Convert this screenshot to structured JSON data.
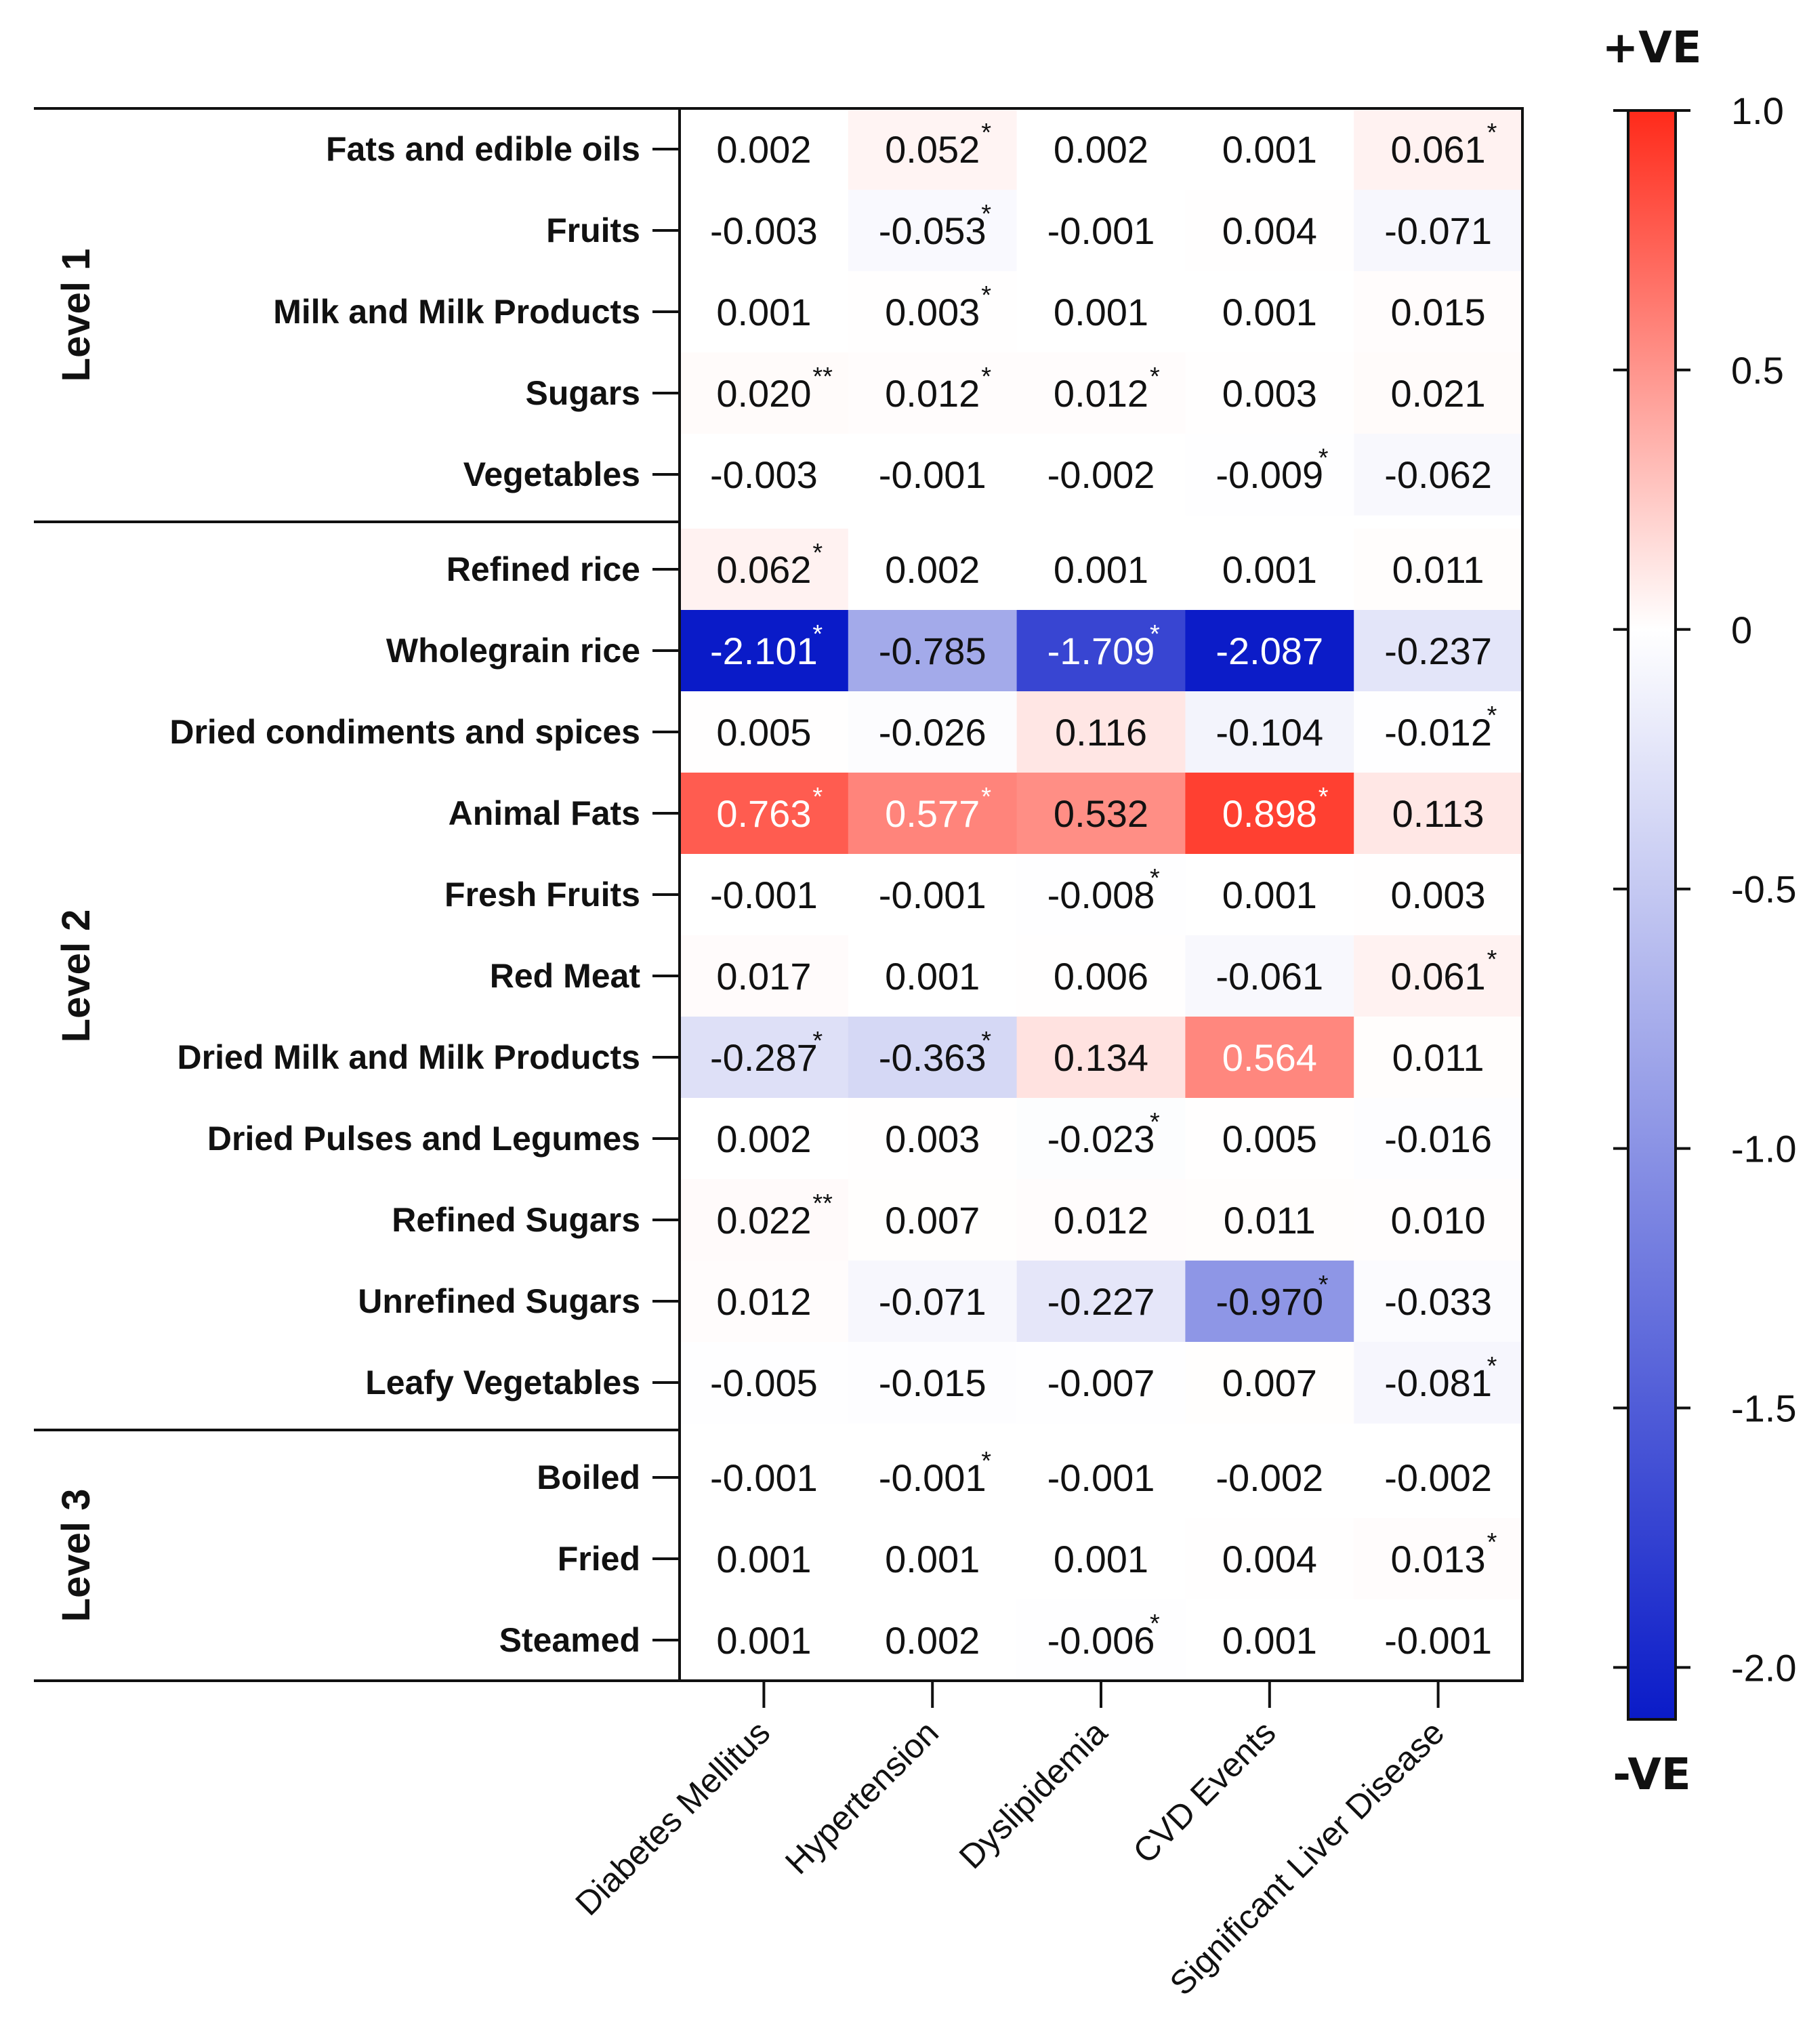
{
  "chart_data": {
    "type": "heatmap",
    "columns": [
      "Diabetes Mellitus",
      "Hypertension",
      "Dyslipidemia",
      "CVD Events",
      "Significant Liver Disease"
    ],
    "groups": [
      {
        "label": "Level  1",
        "rows": [
          {
            "label": "Fats and edible oils",
            "values": [
              0.002,
              0.052,
              0.002,
              0.001,
              0.061
            ],
            "text": [
              "0.002",
              "0.052",
              "0.002",
              "0.001",
              "0.061"
            ],
            "stars": [
              "",
              "*",
              "",
              "",
              "*"
            ]
          },
          {
            "label": "Fruits",
            "values": [
              -0.003,
              -0.053,
              -0.001,
              0.004,
              -0.071
            ],
            "text": [
              "-0.003",
              "-0.053",
              "-0.001",
              "0.004",
              "-0.071"
            ],
            "stars": [
              "",
              "*",
              "",
              "",
              ""
            ]
          },
          {
            "label": "Milk and Milk Products",
            "values": [
              0.001,
              0.003,
              0.001,
              0.001,
              0.015
            ],
            "text": [
              "0.001",
              "0.003",
              "0.001",
              "0.001",
              "0.015"
            ],
            "stars": [
              "",
              "*",
              "",
              "",
              ""
            ]
          },
          {
            "label": "Sugars",
            "values": [
              0.02,
              0.012,
              0.012,
              0.003,
              0.021
            ],
            "text": [
              "0.020",
              "0.012",
              "0.012",
              "0.003",
              "0.021"
            ],
            "stars": [
              "**",
              "*",
              "*",
              "",
              ""
            ]
          },
          {
            "label": "Vegetables",
            "values": [
              -0.003,
              -0.001,
              -0.002,
              -0.009,
              -0.062
            ],
            "text": [
              "-0.003",
              "-0.001",
              "-0.002",
              "-0.009",
              "-0.062"
            ],
            "stars": [
              "",
              "",
              "",
              "*",
              ""
            ]
          }
        ]
      },
      {
        "label": "Level  2",
        "rows": [
          {
            "label": "Refined rice",
            "values": [
              0.062,
              0.002,
              0.001,
              0.001,
              0.011
            ],
            "text": [
              "0.062",
              "0.002",
              "0.001",
              "0.001",
              "0.011"
            ],
            "stars": [
              "*",
              "",
              "",
              "",
              ""
            ]
          },
          {
            "label": "Wholegrain rice",
            "values": [
              -2.101,
              -0.785,
              -1.709,
              -2.087,
              -0.237
            ],
            "text": [
              "-2.101",
              "-0.785",
              "-1.709",
              "-2.087",
              "-0.237"
            ],
            "stars": [
              "*",
              "",
              "*",
              "",
              ""
            ]
          },
          {
            "label": "Dried condiments and spices",
            "values": [
              0.005,
              -0.026,
              0.116,
              -0.104,
              -0.012
            ],
            "text": [
              "0.005",
              "-0.026",
              "0.116",
              "-0.104",
              "-0.012"
            ],
            "stars": [
              "",
              "",
              "",
              "",
              "*"
            ]
          },
          {
            "label": "Animal Fats",
            "values": [
              0.763,
              0.577,
              0.532,
              0.898,
              0.113
            ],
            "text": [
              "0.763",
              "0.577",
              "0.532",
              "0.898",
              "0.113"
            ],
            "stars": [
              "*",
              "*",
              "",
              "*",
              ""
            ]
          },
          {
            "label": "Fresh Fruits",
            "values": [
              -0.001,
              -0.001,
              -0.008,
              0.001,
              0.003
            ],
            "text": [
              "-0.001",
              "-0.001",
              "-0.008",
              "0.001",
              "0.003"
            ],
            "stars": [
              "",
              "",
              "*",
              "",
              ""
            ]
          },
          {
            "label": "Red Meat",
            "values": [
              0.017,
              0.001,
              0.006,
              -0.061,
              0.061
            ],
            "text": [
              "0.017",
              "0.001",
              "0.006",
              "-0.061",
              "0.061"
            ],
            "stars": [
              "",
              "",
              "",
              "",
              "*"
            ]
          },
          {
            "label": "Dried Milk and Milk Products",
            "values": [
              -0.287,
              -0.363,
              0.134,
              0.564,
              0.011
            ],
            "text": [
              "-0.287",
              "-0.363",
              "0.134",
              "0.564",
              "0.011"
            ],
            "stars": [
              "*",
              "*",
              "",
              "",
              ""
            ]
          },
          {
            "label": "Dried Pulses and Legumes",
            "values": [
              0.002,
              0.003,
              -0.023,
              0.005,
              -0.016
            ],
            "text": [
              "0.002",
              "0.003",
              "-0.023",
              "0.005",
              "-0.016"
            ],
            "stars": [
              "",
              "",
              "*",
              "",
              ""
            ]
          },
          {
            "label": "Refined Sugars",
            "values": [
              0.022,
              0.007,
              0.012,
              0.011,
              0.01
            ],
            "text": [
              "0.022",
              "0.007",
              "0.012",
              "0.011",
              "0.010"
            ],
            "stars": [
              "**",
              "",
              "",
              "",
              ""
            ]
          },
          {
            "label": "Unrefined Sugars",
            "values": [
              0.012,
              -0.071,
              -0.227,
              -0.97,
              -0.033
            ],
            "text": [
              "0.012",
              "-0.071",
              "-0.227",
              "-0.970",
              "-0.033"
            ],
            "stars": [
              "",
              "",
              "",
              "*",
              ""
            ]
          },
          {
            "label": "Leafy Vegetables",
            "values": [
              -0.005,
              -0.015,
              -0.007,
              0.007,
              -0.081
            ],
            "text": [
              "-0.005",
              "-0.015",
              "-0.007",
              "0.007",
              "-0.081"
            ],
            "stars": [
              "",
              "",
              "",
              "",
              "*"
            ]
          }
        ]
      },
      {
        "label": "Level 3",
        "rows": [
          {
            "label": "Boiled",
            "values": [
              -0.001,
              -0.001,
              -0.001,
              -0.002,
              -0.002
            ],
            "text": [
              "-0.001",
              "-0.001",
              "-0.001",
              "-0.002",
              "-0.002"
            ],
            "stars": [
              "",
              "*",
              "",
              "",
              ""
            ]
          },
          {
            "label": "Fried",
            "values": [
              0.001,
              0.001,
              0.001,
              0.004,
              0.013
            ],
            "text": [
              "0.001",
              "0.001",
              "0.001",
              "0.004",
              "0.013"
            ],
            "stars": [
              "",
              "",
              "",
              "",
              "*"
            ]
          },
          {
            "label": "Steamed",
            "values": [
              0.001,
              0.002,
              -0.006,
              0.001,
              -0.001
            ],
            "text": [
              "0.001",
              "0.002",
              "-0.006",
              "0.001",
              "-0.001"
            ],
            "stars": [
              "",
              "",
              "*",
              "",
              ""
            ]
          }
        ]
      }
    ],
    "colorbar": {
      "min": -2.1,
      "max": 1.0,
      "ticks": [
        1.0,
        0.5,
        0,
        -0.5,
        -1.0,
        -1.5,
        -2.0
      ],
      "tick_labels": [
        "1.0",
        "0.5",
        "0",
        "-0.5",
        "-1.0",
        "-1.5",
        "-2.0"
      ],
      "top_label": "+VE",
      "bottom_label": "-VE",
      "colors": {
        "max": "#ff2a1a",
        "mid": "#ffffff",
        "min": "#0a1bc8"
      }
    }
  }
}
